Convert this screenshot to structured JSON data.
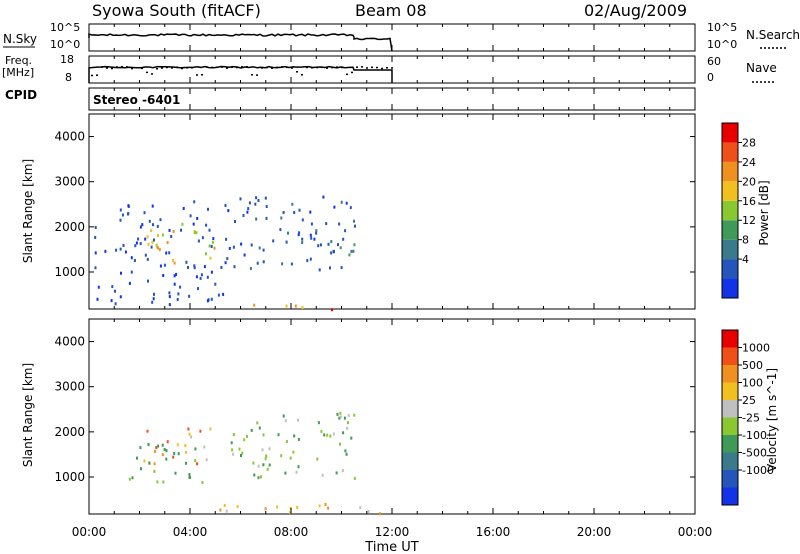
{
  "header": {
    "station": "Syowa South (fitACF)",
    "beam": "Beam 08",
    "date": "02/Aug/2009"
  },
  "noise_panel": {
    "left_label": "N.Sky",
    "left_ticks": [
      "10^5",
      "10^0"
    ],
    "right_ticks": [
      "10^5",
      "10^0"
    ],
    "right_label": "N.Search"
  },
  "freq_panel": {
    "left_label_1": "Freq.",
    "left_label_2": "[MHz]",
    "left_ticks": [
      "18",
      "8"
    ],
    "right_ticks": [
      "60",
      "0"
    ],
    "right_label": "Nave"
  },
  "cpid": {
    "label": "CPID",
    "value": "Stereo -6401"
  },
  "time_axis": {
    "ticks": [
      "00:00",
      "04:00",
      "08:00",
      "12:00",
      "16:00",
      "20:00",
      "00:00"
    ],
    "title": "Time UT"
  },
  "chart_data": [
    {
      "type": "heatmap",
      "name": "power",
      "ylabel": "Slant Range [km]",
      "ylim": [
        180,
        4500
      ],
      "xlim_hours": [
        0,
        24
      ],
      "data_end_hour": 12,
      "yticks": [
        "4000",
        "3000",
        "2000",
        "1000"
      ],
      "colorbar": {
        "label": "Power [dB]",
        "ticks": [
          "28",
          "24",
          "20",
          "16",
          "12",
          "8",
          "4"
        ]
      },
      "colors": [
        "#1432e6",
        "#2455b8",
        "#3a7a8a",
        "#3f9a5a",
        "#8ac832",
        "#f0c020",
        "#f09020",
        "#f05018",
        "#e80000"
      ],
      "scatter_regions": [
        {
          "t": [
            2.0,
            5.0
          ],
          "r": [
            1200,
            2100
          ],
          "level": [
            0.45,
            0.75
          ]
        },
        {
          "t": [
            0.2,
            5.5
          ],
          "r": [
            300,
            2600
          ],
          "level": [
            0.05,
            0.2
          ]
        },
        {
          "t": [
            5.5,
            10.5
          ],
          "r": [
            1000,
            2700
          ],
          "level": [
            0.05,
            0.25
          ]
        },
        {
          "t": [
            6.0,
            10.5
          ],
          "r": [
            180,
            320
          ],
          "level": [
            0.6,
            0.95
          ]
        },
        {
          "t": [
            9.0,
            11.0
          ],
          "r": [
            1400,
            1700
          ],
          "level": [
            0.1,
            0.45
          ]
        }
      ]
    },
    {
      "type": "heatmap",
      "name": "velocity",
      "ylabel": "Slant Range [km]",
      "ylim": [
        180,
        4500
      ],
      "xlim_hours": [
        0,
        24
      ],
      "data_end_hour": 12,
      "yticks": [
        "4000",
        "3000",
        "2000",
        "1000"
      ],
      "colorbar": {
        "label": "Velocity [m s^-1]",
        "ticks": [
          "1000",
          "500",
          "100",
          "25",
          "-25",
          "-100",
          "-500",
          "-1000"
        ]
      },
      "colors": [
        "#1432e6",
        "#2455b8",
        "#3a7a8a",
        "#3f9a5a",
        "#8ac832",
        "#c0c0c0",
        "#f0c020",
        "#f09020",
        "#f05018",
        "#e80000"
      ],
      "scatter_regions": [
        {
          "t": [
            2.0,
            5.0
          ],
          "r": [
            1300,
            2100
          ],
          "level": [
            0.55,
            0.9
          ]
        },
        {
          "t": [
            1.5,
            4.5
          ],
          "r": [
            800,
            1800
          ],
          "level": [
            0.3,
            0.5
          ]
        },
        {
          "t": [
            5.5,
            10.5
          ],
          "r": [
            1000,
            2500
          ],
          "level": [
            0.3,
            0.55
          ]
        },
        {
          "t": [
            5.0,
            11.5
          ],
          "r": [
            180,
            450
          ],
          "level": [
            0.55,
            0.75
          ]
        }
      ]
    }
  ]
}
